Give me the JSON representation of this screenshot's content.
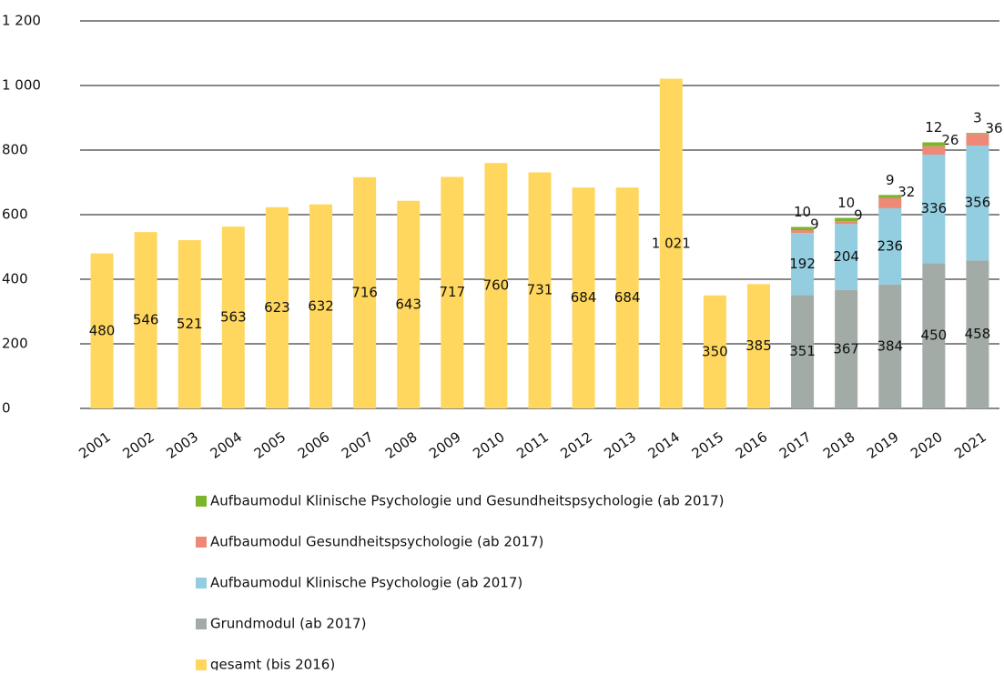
{
  "chart_data": {
    "type": "bar",
    "stacked": true,
    "categories": [
      "2001",
      "2002",
      "2003",
      "2004",
      "2005",
      "2006",
      "2007",
      "2008",
      "2009",
      "2010",
      "2011",
      "2012",
      "2013",
      "2014",
      "2015",
      "2016",
      "2017",
      "2018",
      "2019",
      "2020",
      "2021"
    ],
    "series": [
      {
        "name": "gesamt (bis 2016)",
        "color": "#FFD75E",
        "values": [
          480,
          546,
          521,
          563,
          623,
          632,
          716,
          643,
          717,
          760,
          731,
          684,
          684,
          1021,
          350,
          385,
          null,
          null,
          null,
          null,
          null
        ],
        "value_labels": [
          "480",
          "546",
          "521",
          "563",
          "623",
          "632",
          "716",
          "643",
          "717",
          "760",
          "731",
          "684",
          "684",
          "1 021",
          "350",
          "385",
          null,
          null,
          null,
          null,
          null
        ]
      },
      {
        "name": "Grundmodul (ab 2017)",
        "color": "#A2ABA6",
        "values": [
          null,
          null,
          null,
          null,
          null,
          null,
          null,
          null,
          null,
          null,
          null,
          null,
          null,
          null,
          null,
          null,
          351,
          367,
          384,
          450,
          458
        ]
      },
      {
        "name": "Aufbaumodul Klinische Psychologie (ab 2017)",
        "color": "#93CDE0",
        "values": [
          null,
          null,
          null,
          null,
          null,
          null,
          null,
          null,
          null,
          null,
          null,
          null,
          null,
          null,
          null,
          null,
          192,
          204,
          236,
          336,
          356
        ]
      },
      {
        "name": "Aufbaumodul Gesundheitspsychologie (ab 2017)",
        "color": "#EE8877",
        "values": [
          null,
          null,
          null,
          null,
          null,
          null,
          null,
          null,
          null,
          null,
          null,
          null,
          null,
          null,
          null,
          null,
          9,
          9,
          32,
          26,
          36
        ]
      },
      {
        "name": "Aufbaumodul Klinische Psychologie und Gesundheitspsychologie (ab 2017)",
        "color": "#7AB52B",
        "values": [
          null,
          null,
          null,
          null,
          null,
          null,
          null,
          null,
          null,
          null,
          null,
          null,
          null,
          null,
          null,
          null,
          10,
          10,
          9,
          12,
          3
        ]
      }
    ],
    "ylim": [
      0,
      1200
    ],
    "yticks": [
      0,
      200,
      400,
      600,
      800,
      {
        "value": 1000,
        "label": "1 000"
      },
      {
        "value": 1200,
        "label": "1 200"
      }
    ],
    "grid": true,
    "legend": "bottom"
  }
}
